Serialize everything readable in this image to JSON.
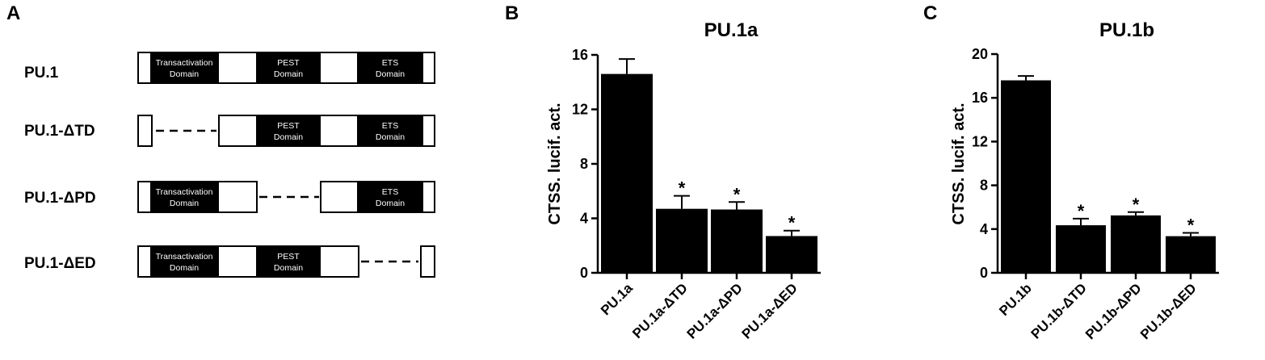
{
  "panels": {
    "a": "A",
    "b": "B",
    "c": "C"
  },
  "schematic": {
    "domain_labels": {
      "td_line1": "Transactivation",
      "td_line2": "Domain",
      "pd_line1": "PEST",
      "pd_line2": "Domain",
      "ed_line1": "ETS",
      "ed_line2": "Domain"
    },
    "constructs": [
      {
        "name": "PU.1",
        "deleted": "none"
      },
      {
        "name": "PU.1-ΔTD",
        "deleted": "td"
      },
      {
        "name": "PU.1-ΔPD",
        "deleted": "pd"
      },
      {
        "name": "PU.1-ΔED",
        "deleted": "ed"
      }
    ]
  },
  "chart_data": [
    {
      "type": "bar",
      "title": "PU.1a",
      "ylabel": "CTSS. lucif. act.",
      "xlabel": "",
      "categories": [
        "PU.1a",
        "PU.1a-ΔTD",
        "PU.1a-ΔPD",
        "PU.1a-ΔED"
      ],
      "values": [
        14.6,
        4.7,
        4.65,
        2.7
      ],
      "errors": [
        1.1,
        0.95,
        0.55,
        0.4
      ],
      "significance": [
        "",
        "*",
        "*",
        "*"
      ],
      "ylim": [
        0,
        16
      ],
      "yticks": [
        0,
        4,
        8,
        12,
        16
      ],
      "bar_color": "#000000"
    },
    {
      "type": "bar",
      "title": "PU.1b",
      "ylabel": "CTSS. lucif. act.",
      "xlabel": "",
      "categories": [
        "PU.1b",
        "PU.1b-ΔTD",
        "PU.1b-ΔPD",
        "PU.1b-ΔED"
      ],
      "values": [
        17.6,
        4.35,
        5.25,
        3.35
      ],
      "errors": [
        0.4,
        0.6,
        0.3,
        0.3
      ],
      "significance": [
        "",
        "*",
        "*",
        "*"
      ],
      "ylim": [
        0,
        20
      ],
      "yticks": [
        0,
        4,
        8,
        12,
        16,
        20
      ],
      "bar_color": "#000000"
    }
  ]
}
